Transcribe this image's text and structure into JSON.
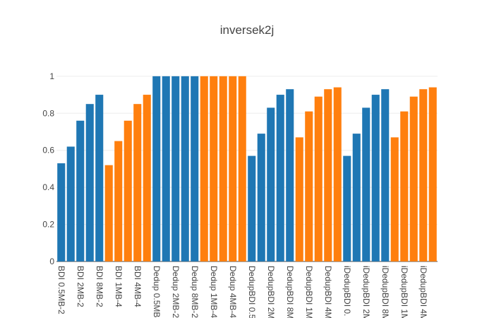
{
  "chart_data": {
    "type": "bar",
    "title": "inversek2j",
    "xlabel": "",
    "ylabel": "",
    "ylim": [
      0,
      1.03
    ],
    "yticks": [
      0,
      0.2,
      0.4,
      0.6,
      0.8,
      1
    ],
    "ytick_labels": [
      "0",
      "0.2",
      "0.4",
      "0.6",
      "0.8",
      "1"
    ],
    "grid": true,
    "colors": {
      "blue": "#1f77b4",
      "orange": "#ff7f0e"
    },
    "bars": [
      {
        "value": 0.53,
        "color": "blue"
      },
      {
        "value": 0.62,
        "color": "blue"
      },
      {
        "value": 0.76,
        "color": "blue"
      },
      {
        "value": 0.85,
        "color": "blue"
      },
      {
        "value": 0.9,
        "color": "blue"
      },
      {
        "value": 0.52,
        "color": "orange"
      },
      {
        "value": 0.65,
        "color": "orange"
      },
      {
        "value": 0.76,
        "color": "orange"
      },
      {
        "value": 0.85,
        "color": "orange"
      },
      {
        "value": 0.9,
        "color": "orange"
      },
      {
        "value": 1.0,
        "color": "blue"
      },
      {
        "value": 1.0,
        "color": "blue"
      },
      {
        "value": 1.0,
        "color": "blue"
      },
      {
        "value": 1.0,
        "color": "blue"
      },
      {
        "value": 1.0,
        "color": "blue"
      },
      {
        "value": 1.0,
        "color": "orange"
      },
      {
        "value": 1.0,
        "color": "orange"
      },
      {
        "value": 1.0,
        "color": "orange"
      },
      {
        "value": 1.0,
        "color": "orange"
      },
      {
        "value": 1.0,
        "color": "orange"
      },
      {
        "value": 0.57,
        "color": "blue"
      },
      {
        "value": 0.69,
        "color": "blue"
      },
      {
        "value": 0.83,
        "color": "blue"
      },
      {
        "value": 0.9,
        "color": "blue"
      },
      {
        "value": 0.93,
        "color": "blue"
      },
      {
        "value": 0.67,
        "color": "orange"
      },
      {
        "value": 0.81,
        "color": "orange"
      },
      {
        "value": 0.89,
        "color": "orange"
      },
      {
        "value": 0.93,
        "color": "orange"
      },
      {
        "value": 0.94,
        "color": "orange"
      },
      {
        "value": 0.57,
        "color": "blue"
      },
      {
        "value": 0.69,
        "color": "blue"
      },
      {
        "value": 0.83,
        "color": "blue"
      },
      {
        "value": 0.9,
        "color": "blue"
      },
      {
        "value": 0.93,
        "color": "blue"
      },
      {
        "value": 0.67,
        "color": "orange"
      },
      {
        "value": 0.81,
        "color": "orange"
      },
      {
        "value": 0.89,
        "color": "orange"
      },
      {
        "value": 0.93,
        "color": "orange"
      },
      {
        "value": 0.94,
        "color": "orange"
      }
    ],
    "x_tick_labels": [
      {
        "index": 0,
        "text": "BDI 0.5MB-2"
      },
      {
        "index": 2,
        "text": "BDI 2MB-2"
      },
      {
        "index": 4,
        "text": "BDI 8MB-2"
      },
      {
        "index": 6,
        "text": "BDI 1MB-4"
      },
      {
        "index": 8,
        "text": "BDI 4MB-4"
      },
      {
        "index": 10,
        "text": "Dedup 0.5MB"
      },
      {
        "index": 12,
        "text": "Dedup 2MB-2"
      },
      {
        "index": 14,
        "text": "Dedup 8MB-2"
      },
      {
        "index": 16,
        "text": "Dedup 1MB-4"
      },
      {
        "index": 18,
        "text": "Dedup 4MB-4"
      },
      {
        "index": 20,
        "text": "DedupBDI 0.5"
      },
      {
        "index": 22,
        "text": "DedupBDI 2M"
      },
      {
        "index": 24,
        "text": "DedupBDI 8M"
      },
      {
        "index": 26,
        "text": "DedupBDI 1M"
      },
      {
        "index": 28,
        "text": "DedupBDI 4M"
      },
      {
        "index": 30,
        "text": "iDedupBDI 0."
      },
      {
        "index": 32,
        "text": "iDedupBDI 2M"
      },
      {
        "index": 34,
        "text": "iDedupBDI 8M"
      },
      {
        "index": 36,
        "text": "iDedupBDI 1M"
      },
      {
        "index": 38,
        "text": "iDedupBDI 4M"
      }
    ]
  }
}
